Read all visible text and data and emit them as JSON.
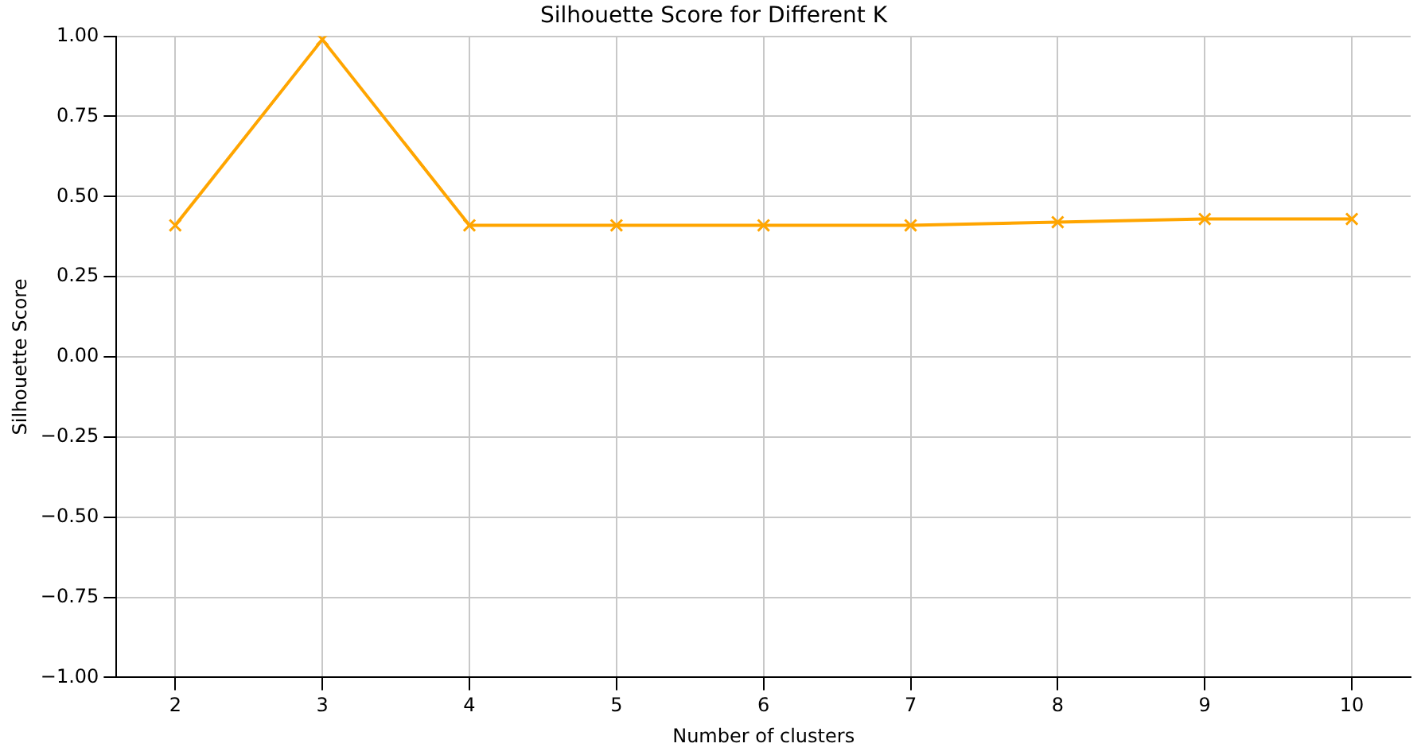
{
  "chart_data": {
    "type": "line",
    "title": "Silhouette Score for Different K",
    "xlabel": "Number of clusters",
    "ylabel": "Silhouette Score",
    "x": [
      2,
      3,
      4,
      5,
      6,
      7,
      8,
      9,
      10
    ],
    "series": [
      {
        "color": "#ffa500",
        "values": [
          0.41,
          0.99,
          0.41,
          0.41,
          0.41,
          0.41,
          0.42,
          0.43,
          0.43
        ]
      }
    ],
    "xlim": [
      1.6,
      10.4
    ],
    "xticks": [
      2,
      3,
      4,
      5,
      6,
      7,
      8,
      9,
      10
    ],
    "ylim": [
      -1,
      1
    ],
    "yticks": [
      {
        "value": -1,
        "label": "−1.00"
      },
      {
        "value": -0.75,
        "label": "−0.75"
      },
      {
        "value": -0.5,
        "label": "−0.50"
      },
      {
        "value": -0.25,
        "label": "−0.25"
      },
      {
        "value": 0,
        "label": "0.00"
      },
      {
        "value": 0.25,
        "label": "0.25"
      },
      {
        "value": 0.5,
        "label": "0.50"
      },
      {
        "value": 0.75,
        "label": "0.75"
      },
      {
        "value": 1,
        "label": "1.00"
      }
    ],
    "grid": true,
    "marker": "cross",
    "line_style": "solid",
    "legend": false
  }
}
